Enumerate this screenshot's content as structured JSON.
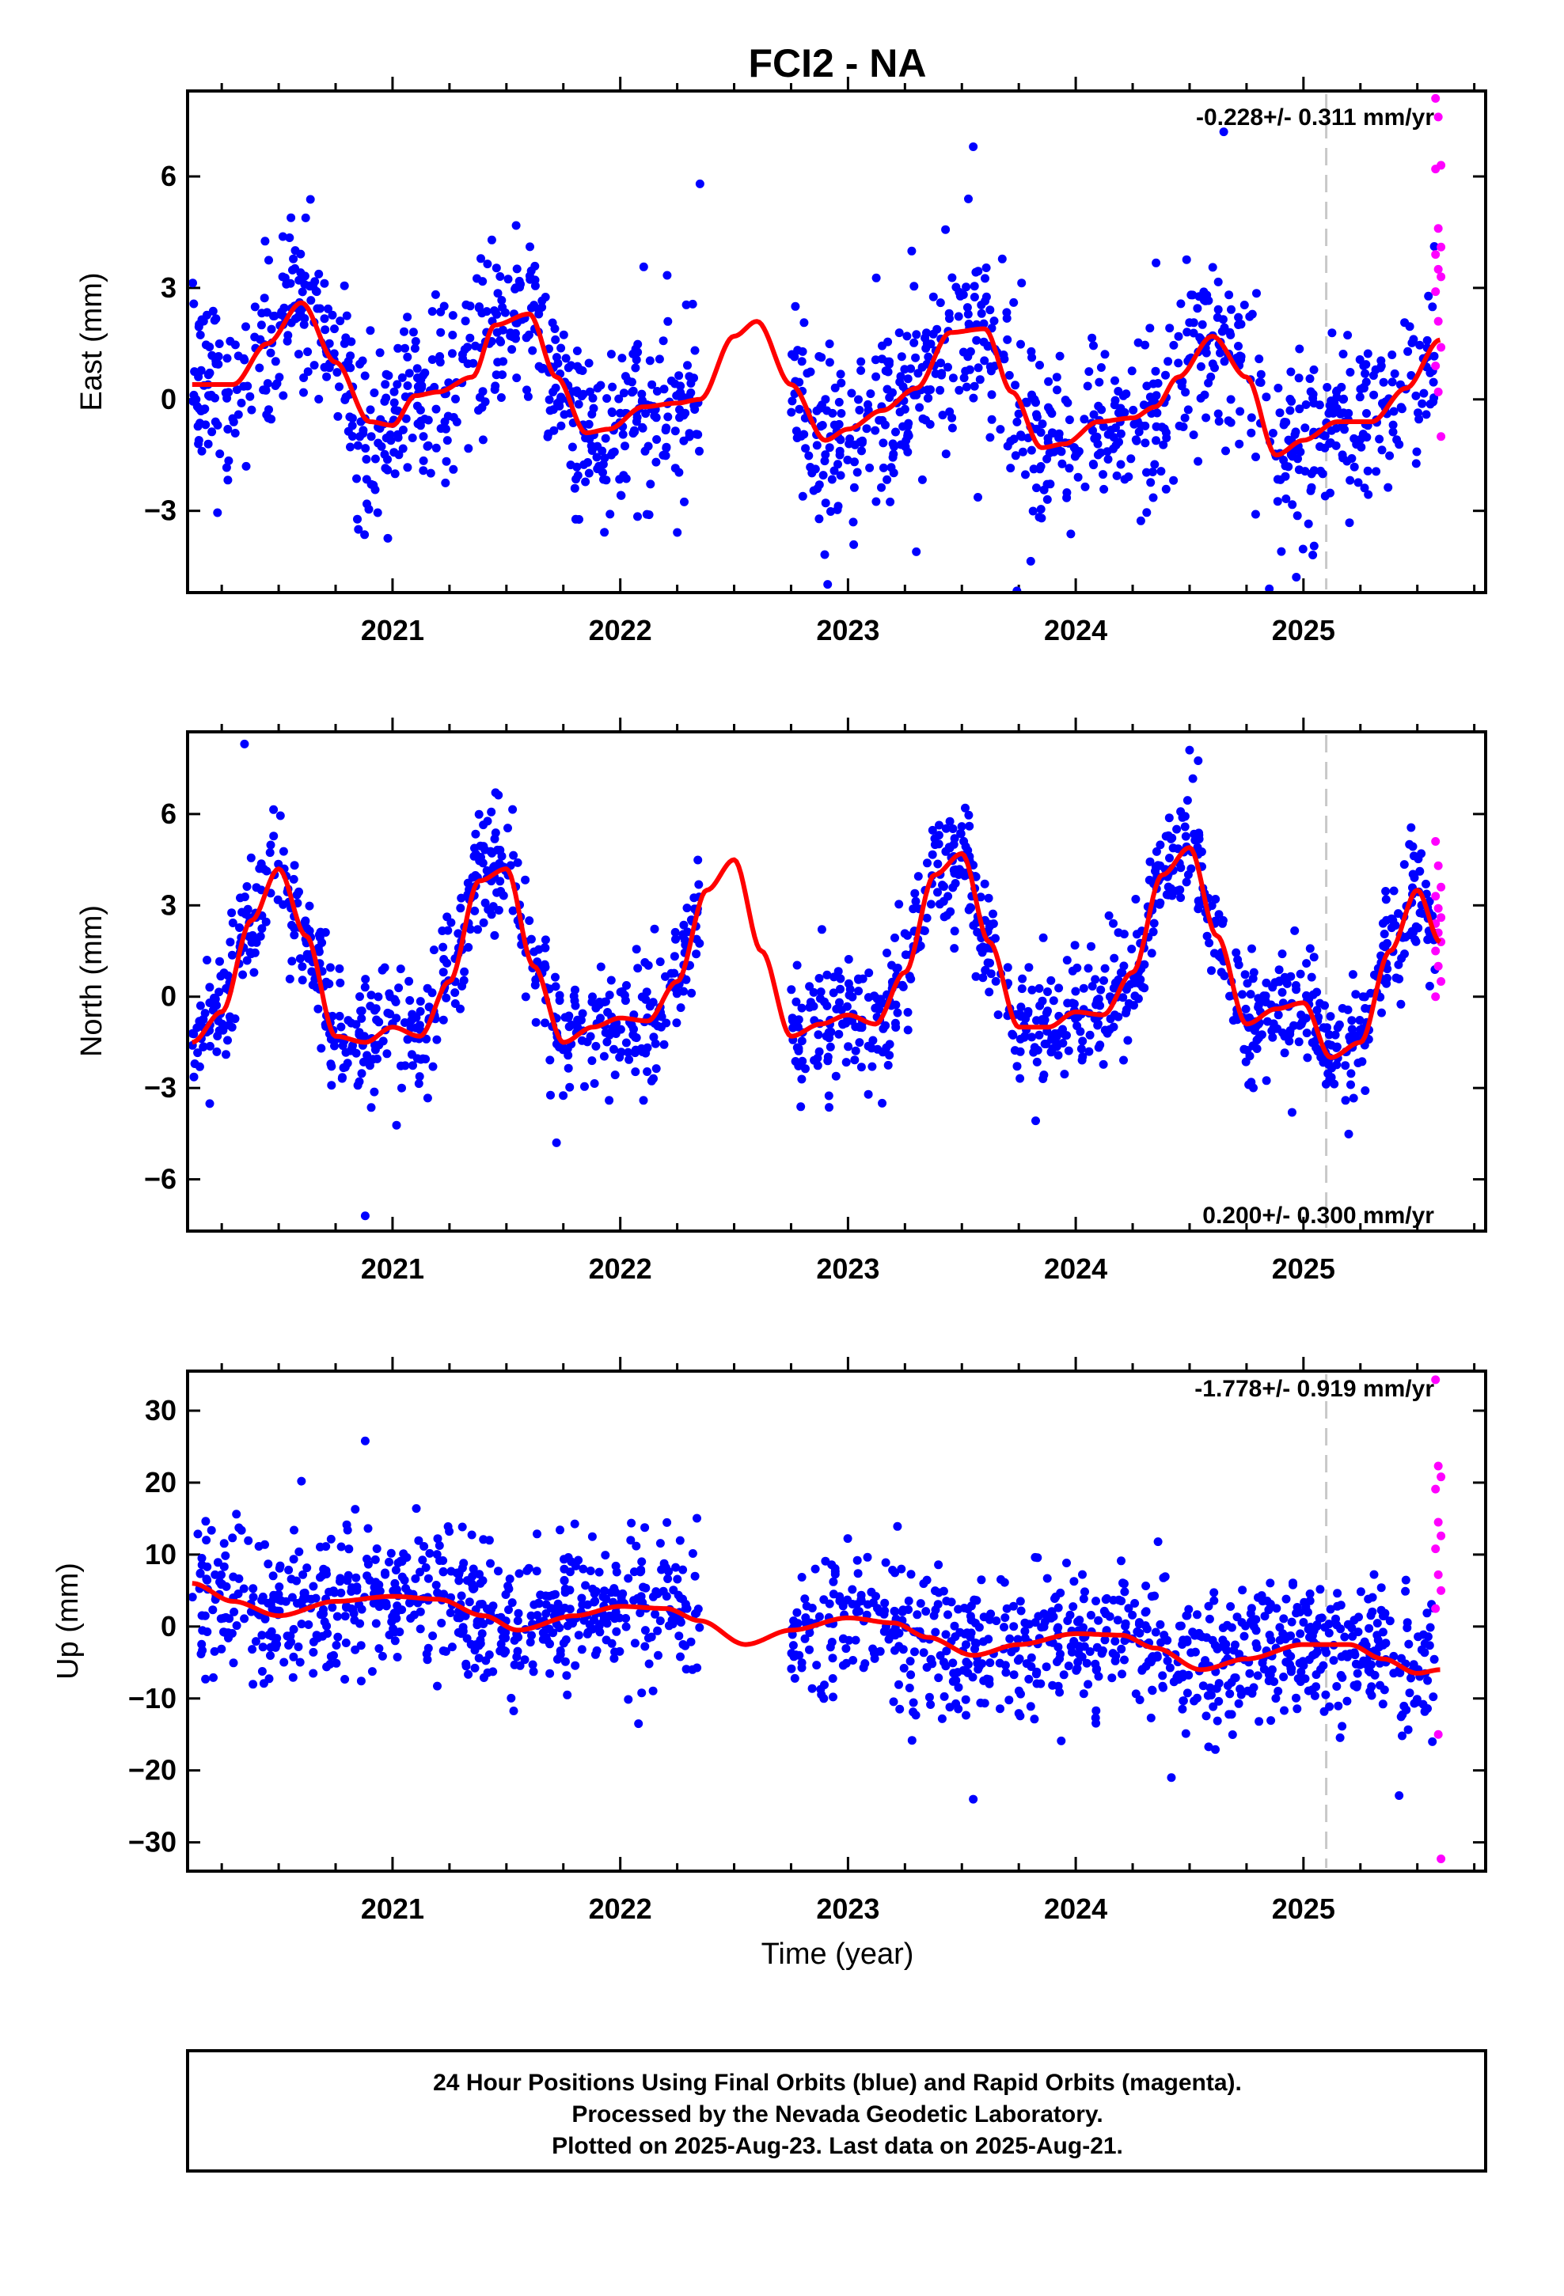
{
  "title": "FCI2 - NA",
  "xlabel": "Time (year)",
  "footer": {
    "line1": "24 Hour Positions Using Final Orbits (blue) and Rapid Orbits (magenta).",
    "line2": "Processed by the Nevada Geodetic Laboratory.",
    "line3": "Plotted on 2025-Aug-23. Last data on 2025-Aug-21."
  },
  "colors": {
    "final": "#0000ff",
    "rapid": "#ff00ff",
    "model": "#ff0000",
    "marker_line": "#c8c8c8",
    "axis": "#000000"
  },
  "chart_data": [
    {
      "type": "scatter",
      "panel": "east",
      "ylabel": "East (mm)",
      "rate_label": "-0.228+/- 0.311 mm/yr",
      "rate_position": "top-right",
      "xlim": [
        2020.1,
        2025.8
      ],
      "ylim": [
        -5.2,
        8.3
      ],
      "yticks": [
        -3,
        0,
        3,
        6
      ],
      "xticks": [
        2021,
        2022,
        2023,
        2024,
        2025
      ],
      "marker_line_x": 2025.1,
      "data_start": 2020.12,
      "data_end": 2025.6,
      "gap": [
        2022.35,
        2022.75
      ],
      "rapid_start": 2025.58,
      "model": {
        "x": [
          2020.12,
          2020.3,
          2020.45,
          2020.6,
          2020.75,
          2020.9,
          2021.0,
          2021.1,
          2021.2,
          2021.35,
          2021.45,
          2021.6,
          2021.72,
          2021.85,
          2021.95,
          2022.1,
          2022.25,
          2022.35,
          2022.5,
          2022.6,
          2022.75,
          2022.9,
          2023.0,
          2023.15,
          2023.3,
          2023.45,
          2023.6,
          2023.72,
          2023.85,
          2023.95,
          2024.1,
          2024.25,
          2024.35,
          2024.45,
          2024.6,
          2024.75,
          2024.88,
          2025.0,
          2025.15,
          2025.3,
          2025.45,
          2025.6
        ],
        "y": [
          0.4,
          0.4,
          1.5,
          2.6,
          1.0,
          -0.6,
          -0.7,
          0.1,
          0.2,
          0.6,
          2.0,
          2.3,
          0.6,
          -0.9,
          -0.8,
          -0.2,
          -0.1,
          0.0,
          1.7,
          2.1,
          0.4,
          -1.1,
          -0.8,
          -0.3,
          0.3,
          1.8,
          1.9,
          0.2,
          -1.3,
          -1.2,
          -0.6,
          -0.5,
          -0.2,
          0.6,
          1.7,
          0.6,
          -1.5,
          -1.1,
          -0.6,
          -0.6,
          0.3,
          1.6
        ]
      },
      "scatter": {
        "sd": 1.25,
        "n_final": 1500,
        "outliers": [
          [
            2020.85,
            -3.5
          ],
          [
            2023.3,
            -4.1
          ],
          [
            2024.65,
            7.2
          ],
          [
            2024.85,
            -5.1
          ],
          [
            2022.35,
            5.8
          ],
          [
            2023.55,
            6.8
          ]
        ]
      },
      "rapid_points": [
        8.1,
        7.6,
        6.3,
        6.2,
        4.6,
        4.1,
        3.9,
        3.5,
        3.3,
        2.9,
        2.1,
        1.4,
        0.9,
        0.2,
        -1.0
      ]
    },
    {
      "type": "scatter",
      "panel": "north",
      "ylabel": "North (mm)",
      "rate_label": "0.200+/- 0.300 mm/yr",
      "rate_position": "bottom-right",
      "xlim": [
        2020.1,
        2025.8
      ],
      "ylim": [
        -7.7,
        8.7
      ],
      "yticks": [
        -6,
        -3,
        0,
        3,
        6
      ],
      "xticks": [
        2021,
        2022,
        2023,
        2024,
        2025
      ],
      "marker_line_x": 2025.1,
      "data_start": 2020.12,
      "data_end": 2025.6,
      "gap": [
        2022.35,
        2022.75
      ],
      "rapid_start": 2025.58,
      "model": {
        "x": [
          2020.12,
          2020.25,
          2020.38,
          2020.5,
          2020.62,
          2020.75,
          2020.88,
          2021.0,
          2021.12,
          2021.25,
          2021.38,
          2021.5,
          2021.62,
          2021.75,
          2021.88,
          2022.0,
          2022.12,
          2022.25,
          2022.38,
          2022.5,
          2022.62,
          2022.75,
          2022.88,
          2023.0,
          2023.12,
          2023.25,
          2023.38,
          2023.5,
          2023.62,
          2023.75,
          2023.88,
          2024.0,
          2024.12,
          2024.25,
          2024.38,
          2024.5,
          2024.62,
          2024.75,
          2024.88,
          2025.0,
          2025.12,
          2025.25,
          2025.38,
          2025.5,
          2025.6
        ],
        "y": [
          -1.5,
          -0.5,
          2.5,
          4.2,
          2.0,
          -1.3,
          -1.5,
          -1.0,
          -1.3,
          0.5,
          3.8,
          4.2,
          1.0,
          -1.5,
          -1.0,
          -0.7,
          -0.8,
          0.5,
          3.5,
          4.5,
          1.5,
          -1.3,
          -0.9,
          -0.6,
          -0.9,
          0.8,
          4.0,
          4.7,
          1.8,
          -1.0,
          -1.0,
          -0.5,
          -0.6,
          0.8,
          4.0,
          4.9,
          2.0,
          -0.9,
          -0.4,
          -0.2,
          -2.0,
          -1.5,
          1.5,
          3.5,
          1.8
        ]
      },
      "scatter": {
        "sd": 1.0,
        "n_final": 1500,
        "outliers": [
          [
            2020.88,
            -7.2
          ],
          [
            2021.72,
            -4.8
          ],
          [
            2023.15,
            -3.5
          ],
          [
            2024.95,
            -3.8
          ],
          [
            2020.35,
            8.3
          ],
          [
            2024.5,
            8.1
          ]
        ]
      },
      "rapid_points": [
        5.1,
        4.3,
        3.6,
        3.3,
        2.9,
        2.6,
        2.4,
        2.1,
        1.8,
        1.5,
        1.0,
        0.5,
        0.0
      ]
    },
    {
      "type": "scatter",
      "panel": "up",
      "ylabel": "Up (mm)",
      "rate_label": "-1.778+/- 0.919 mm/yr",
      "rate_position": "top-right",
      "xlim": [
        2020.1,
        2025.8
      ],
      "ylim": [
        -34,
        35.5
      ],
      "yticks": [
        -30,
        -20,
        -10,
        0,
        10,
        20,
        30
      ],
      "xticks": [
        2021,
        2022,
        2023,
        2024,
        2025
      ],
      "marker_line_x": 2025.1,
      "data_start": 2020.12,
      "data_end": 2025.6,
      "gap": [
        2022.35,
        2022.75
      ],
      "rapid_start": 2025.58,
      "model": {
        "x": [
          2020.12,
          2020.3,
          2020.5,
          2020.75,
          2021.0,
          2021.2,
          2021.4,
          2021.55,
          2021.8,
          2022.0,
          2022.2,
          2022.35,
          2022.55,
          2022.75,
          2023.0,
          2023.2,
          2023.35,
          2023.55,
          2023.75,
          2024.0,
          2024.2,
          2024.35,
          2024.55,
          2024.75,
          2025.0,
          2025.2,
          2025.35,
          2025.5,
          2025.6
        ],
        "y": [
          6.0,
          3.5,
          1.5,
          3.5,
          4.2,
          3.8,
          1.5,
          -0.5,
          1.5,
          2.8,
          2.5,
          0.8,
          -2.5,
          -0.5,
          1.2,
          0.5,
          -1.5,
          -4.0,
          -2.5,
          -1.0,
          -1.2,
          -3.0,
          -6.0,
          -4.5,
          -2.5,
          -2.5,
          -4.5,
          -6.5,
          -6.0
        ]
      },
      "scatter": {
        "sd": 5.0,
        "n_final": 1500,
        "outliers": [
          [
            2020.88,
            25.8
          ],
          [
            2020.6,
            20.2
          ],
          [
            2022.08,
            -13.5
          ],
          [
            2023.55,
            -24.0
          ],
          [
            2025.42,
            -23.5
          ],
          [
            2024.42,
            -21.0
          ]
        ]
      },
      "rapid_points": [
        34.3,
        22.3,
        20.8,
        19.1,
        14.5,
        12.6,
        10.8,
        7.2,
        5.0,
        2.5,
        -15.0,
        -32.3
      ]
    }
  ]
}
